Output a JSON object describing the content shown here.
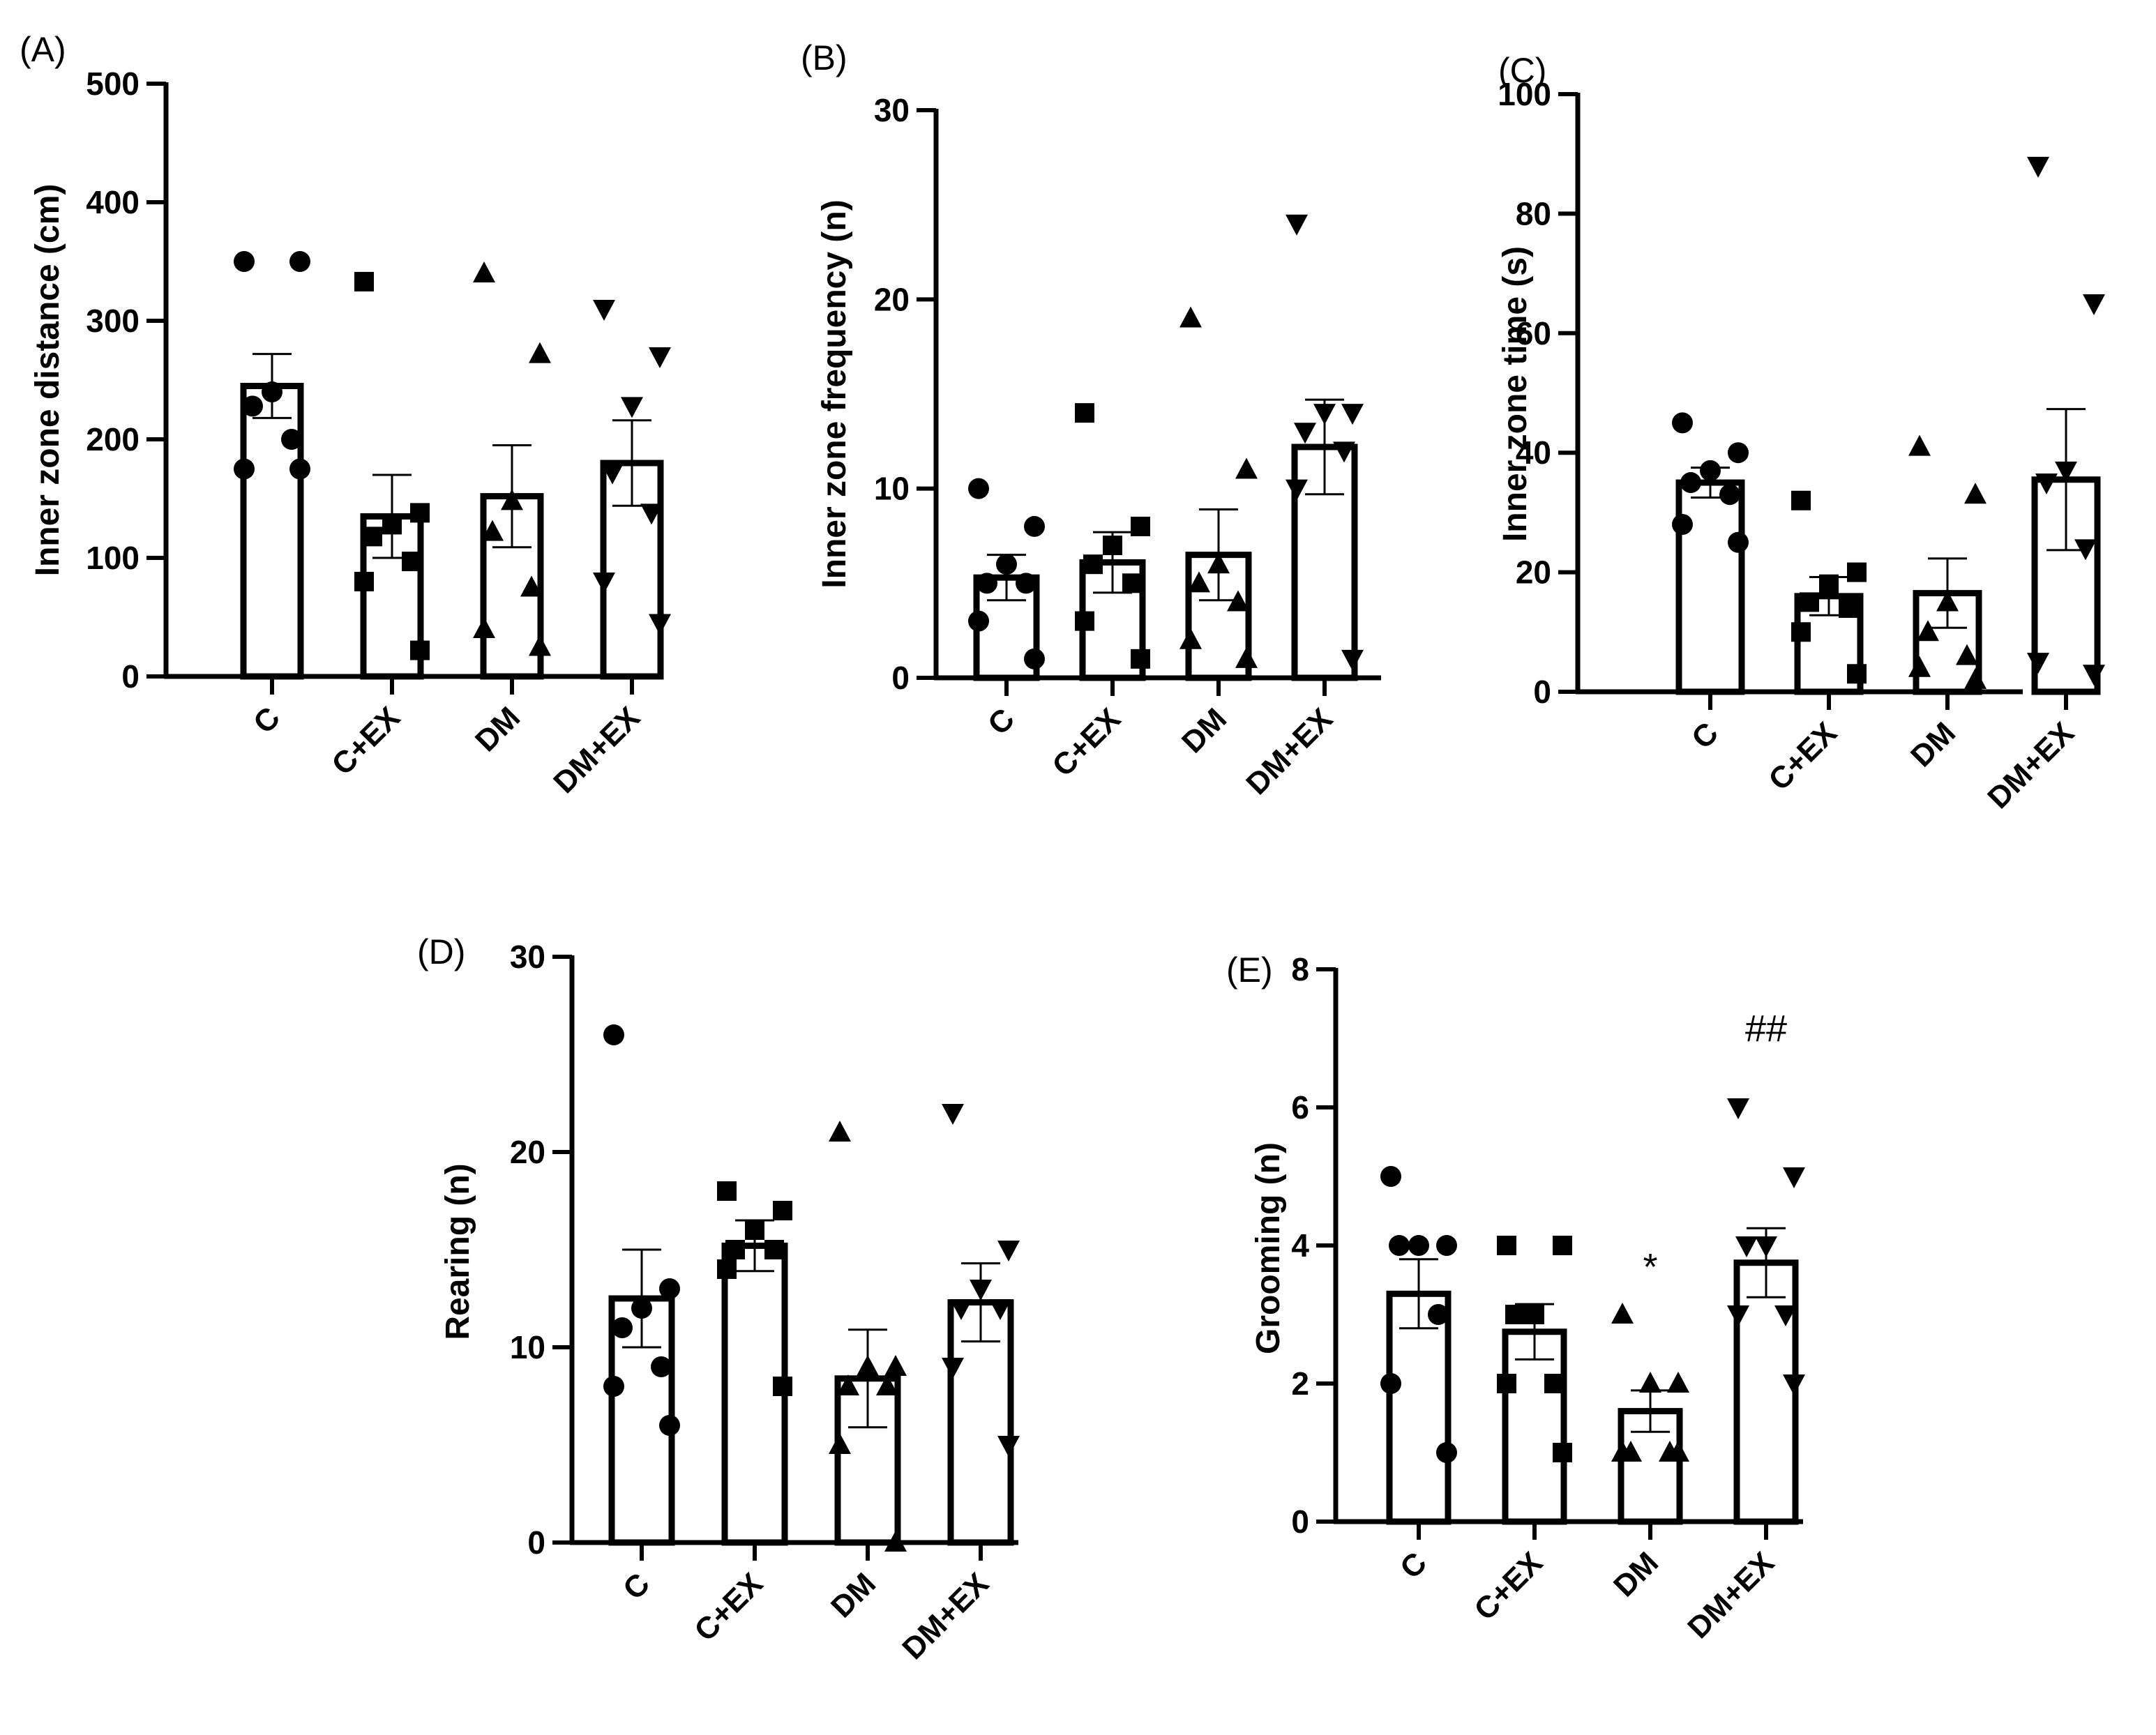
{
  "chart_data": [
    {
      "type": "bar",
      "panel": "(A)",
      "ylabel": "Inner zone distance (cm)",
      "ylim": [
        0,
        500
      ],
      "yticks": [
        0,
        100,
        200,
        300,
        400,
        500
      ],
      "categories": [
        "C",
        "C+EX",
        "DM",
        "DM+EX"
      ],
      "means": [
        245,
        135,
        152,
        180
      ],
      "sem": [
        27,
        35,
        43,
        36
      ],
      "points": [
        [
          350,
          350,
          240,
          228,
          200,
          175,
          175
        ],
        [
          333,
          138,
          128,
          118,
          97,
          80,
          22
        ],
        [
          340,
          272,
          148,
          122,
          75,
          40,
          25
        ],
        [
          310,
          270,
          228,
          172,
          138,
          80,
          45
        ]
      ],
      "markers": [
        "circle",
        "square",
        "triangle-up",
        "triangle-down"
      ],
      "annotations": [
        "",
        "",
        "",
        ""
      ]
    },
    {
      "type": "bar",
      "panel": "(B)",
      "ylabel": "Inner zone frequency (n)",
      "ylim": [
        0,
        30
      ],
      "yticks": [
        0,
        10,
        20,
        30
      ],
      "categories": [
        "C",
        "C+EX",
        "DM",
        "DM+EX"
      ],
      "means": [
        5.3,
        6.1,
        6.5,
        12.2
      ],
      "sem": [
        1.2,
        1.6,
        2.4,
        2.5
      ],
      "points": [
        [
          10,
          8,
          6,
          5,
          5,
          3,
          1
        ],
        [
          14,
          8,
          7,
          6,
          5,
          3,
          1
        ],
        [
          19,
          11,
          6,
          5,
          4,
          2,
          1
        ],
        [
          24,
          14,
          14,
          13,
          12,
          10,
          1
        ]
      ],
      "markers": [
        "circle",
        "square",
        "triangle-up",
        "triangle-down"
      ],
      "annotations": [
        "",
        "",
        "",
        ""
      ]
    },
    {
      "type": "bar",
      "panel": "(C)",
      "ylabel": "Inner zone time (s)",
      "ylim": [
        0,
        100
      ],
      "yticks": [
        0,
        20,
        40,
        60,
        80,
        100
      ],
      "categories": [
        "C",
        "C+EX",
        "DM",
        "DM+EX"
      ],
      "means": [
        35,
        16,
        16.5,
        35.5
      ],
      "sem": [
        2.5,
        3.2,
        5.8,
        11.8
      ],
      "points": [
        [
          45,
          40,
          37,
          35,
          33,
          28,
          25
        ],
        [
          32,
          20,
          18,
          15,
          14,
          10,
          3
        ],
        [
          41,
          33,
          15,
          10,
          6,
          4,
          2
        ],
        [
          88,
          65,
          37,
          35,
          24,
          5,
          3
        ]
      ],
      "markers": [
        "circle",
        "square",
        "triangle-up",
        "triangle-down"
      ],
      "annotations": [
        "",
        "",
        "",
        ""
      ]
    },
    {
      "type": "bar",
      "panel": "(D)",
      "ylabel": "Rearing (n)",
      "ylim": [
        0,
        30
      ],
      "yticks": [
        0,
        10,
        20,
        30
      ],
      "categories": [
        "C",
        "C+EX",
        "DM",
        "DM+EX"
      ],
      "means": [
        12.5,
        15.2,
        8.4,
        12.3
      ],
      "sem": [
        2.5,
        1.3,
        2.5,
        2.0
      ],
      "points": [
        [
          26,
          13,
          12,
          11,
          9,
          8,
          6
        ],
        [
          18,
          17,
          16,
          15,
          15,
          14,
          8
        ],
        [
          21,
          9,
          9,
          8,
          8,
          5,
          0
        ],
        [
          22,
          15,
          13,
          12,
          12,
          9,
          5
        ]
      ],
      "markers": [
        "circle",
        "square",
        "triangle-up",
        "triangle-down"
      ],
      "annotations": [
        "",
        "",
        "",
        ""
      ]
    },
    {
      "type": "bar",
      "panel": "(E)",
      "ylabel": "Grooming (n)",
      "ylim": [
        0,
        8
      ],
      "yticks": [
        0,
        2,
        4,
        6,
        8
      ],
      "categories": [
        "C",
        "C+EX",
        "DM",
        "DM+EX"
      ],
      "means": [
        3.3,
        2.75,
        1.6,
        3.75
      ],
      "sem": [
        0.5,
        0.4,
        0.3,
        0.5
      ],
      "points": [
        [
          5,
          4,
          4,
          4,
          3,
          2,
          1
        ],
        [
          4,
          4,
          3,
          3,
          2,
          2,
          1
        ],
        [
          3,
          2,
          2,
          1,
          1,
          1,
          1
        ],
        [
          6,
          5,
          4,
          4,
          3,
          3,
          2
        ]
      ],
      "markers": [
        "circle",
        "square",
        "triangle-up",
        "triangle-down"
      ],
      "annotations": [
        "",
        "",
        "*",
        "##"
      ]
    }
  ]
}
